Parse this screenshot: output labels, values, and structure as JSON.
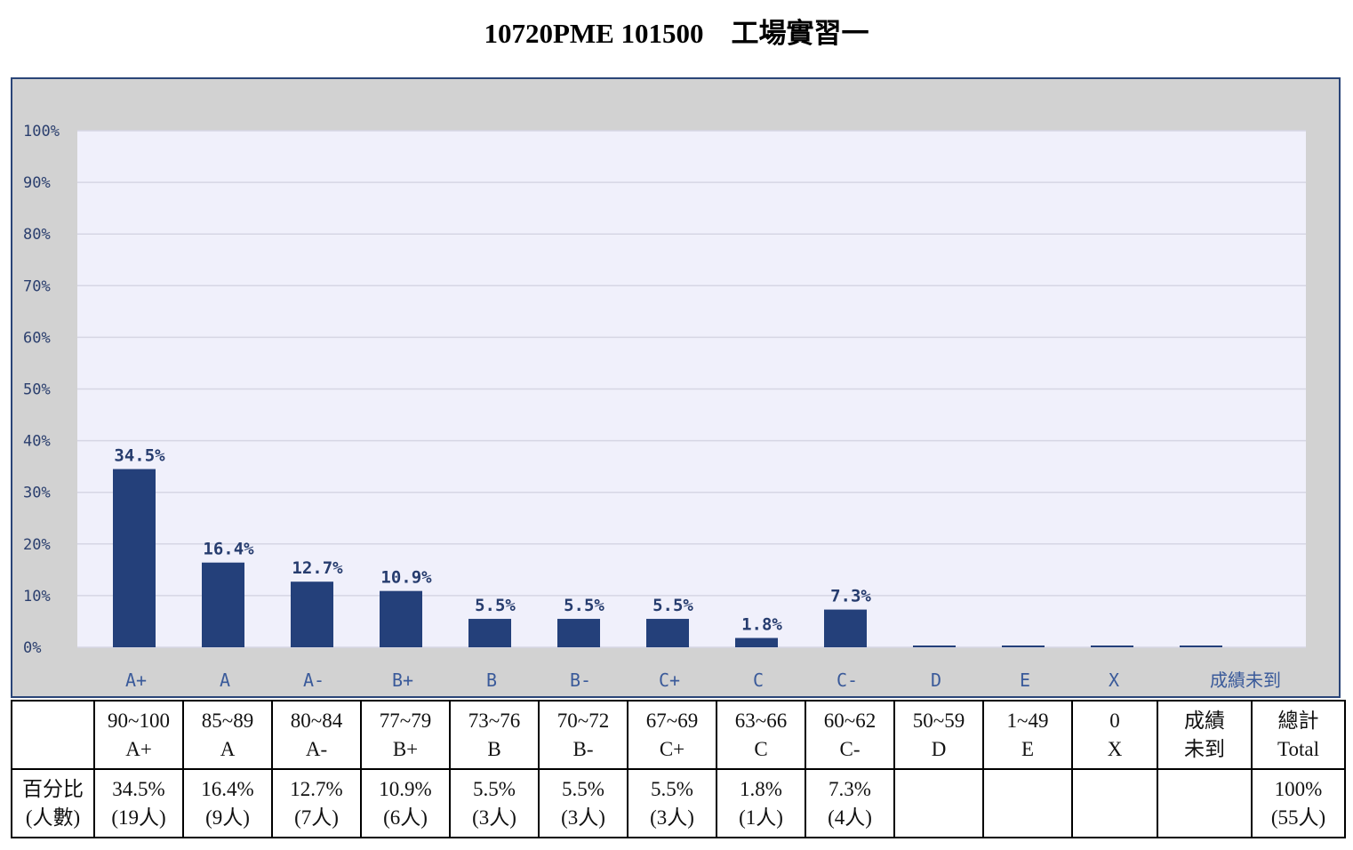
{
  "title": "10720PME 101500　工場實習一",
  "chart_data": {
    "type": "bar",
    "categories": [
      "A+",
      "A",
      "A-",
      "B+",
      "B",
      "B-",
      "C+",
      "C",
      "C-",
      "D",
      "E",
      "X",
      "成績未到"
    ],
    "values": [
      34.5,
      16.4,
      12.7,
      10.9,
      5.5,
      5.5,
      5.5,
      1.8,
      7.3,
      0,
      0,
      0,
      0
    ],
    "data_labels": [
      "34.5%",
      "16.4%",
      "12.7%",
      "10.9%",
      "5.5%",
      "5.5%",
      "5.5%",
      "1.8%",
      "7.3%",
      "",
      "",
      "",
      ""
    ],
    "yticks": [
      "0%",
      "10%",
      "20%",
      "30%",
      "40%",
      "50%",
      "60%",
      "70%",
      "80%",
      "90%",
      "100%"
    ],
    "ylim": [
      0,
      100
    ],
    "grid": true,
    "colors": {
      "bar": "#24407a",
      "plot_bg": "#f0f0fb",
      "frame_bg": "#d2d2d2",
      "grid": "#d6d6e4"
    }
  },
  "table": {
    "headers": [
      {
        "range": "90~100",
        "grade": "A+"
      },
      {
        "range": "85~89",
        "grade": "A"
      },
      {
        "range": "80~84",
        "grade": "A-"
      },
      {
        "range": "77~79",
        "grade": "B+"
      },
      {
        "range": "73~76",
        "grade": "B"
      },
      {
        "range": "70~72",
        "grade": "B-"
      },
      {
        "range": "67~69",
        "grade": "C+"
      },
      {
        "range": "63~66",
        "grade": "C"
      },
      {
        "range": "60~62",
        "grade": "C-"
      },
      {
        "range": "50~59",
        "grade": "D"
      },
      {
        "range": "1~49",
        "grade": "E"
      },
      {
        "range": "0",
        "grade": "X"
      },
      {
        "range": "成績",
        "grade": "未到"
      },
      {
        "range": "總計",
        "grade": "Total"
      }
    ],
    "row_label": {
      "line1": "百分比",
      "line2": "(人數)"
    },
    "cells": [
      {
        "pct": "34.5%",
        "count": "(19人)"
      },
      {
        "pct": "16.4%",
        "count": "(9人)"
      },
      {
        "pct": "12.7%",
        "count": "(7人)"
      },
      {
        "pct": "10.9%",
        "count": "(6人)"
      },
      {
        "pct": "5.5%",
        "count": "(3人)"
      },
      {
        "pct": "5.5%",
        "count": "(3人)"
      },
      {
        "pct": "5.5%",
        "count": "(3人)"
      },
      {
        "pct": "1.8%",
        "count": "(1人)"
      },
      {
        "pct": "7.3%",
        "count": "(4人)"
      },
      {
        "pct": "",
        "count": ""
      },
      {
        "pct": "",
        "count": ""
      },
      {
        "pct": "",
        "count": ""
      },
      {
        "pct": "",
        "count": ""
      },
      {
        "pct": "100%",
        "count": "(55人)"
      }
    ]
  }
}
